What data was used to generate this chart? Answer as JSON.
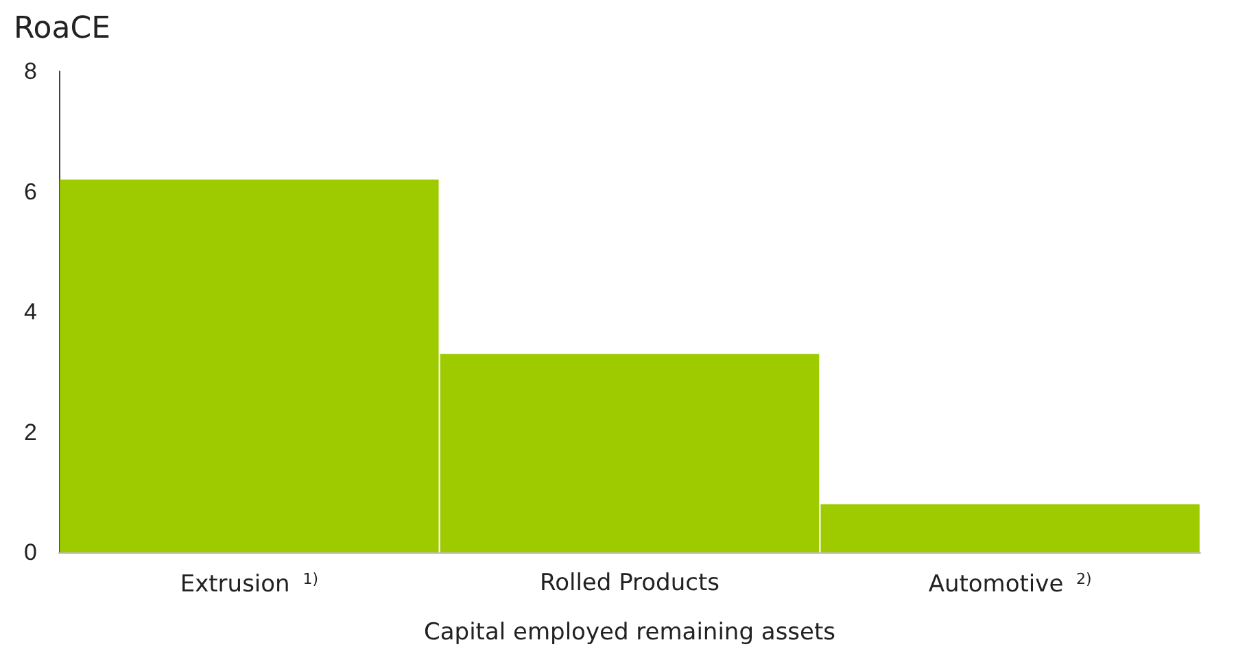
{
  "chart_data": {
    "type": "bar",
    "ylabel": "RoaCE",
    "xlabel": "Capital employed remaining assets",
    "categories": [
      "Extrusion $^{1)}$",
      "Rolled Products",
      "Automotive $^{2)}$"
    ],
    "values": [
      6.2,
      3.3,
      0.8
    ],
    "color": "#9dcb00",
    "ylim": [
      0,
      8
    ],
    "yticks": [
      0,
      2,
      4,
      6,
      8
    ]
  }
}
